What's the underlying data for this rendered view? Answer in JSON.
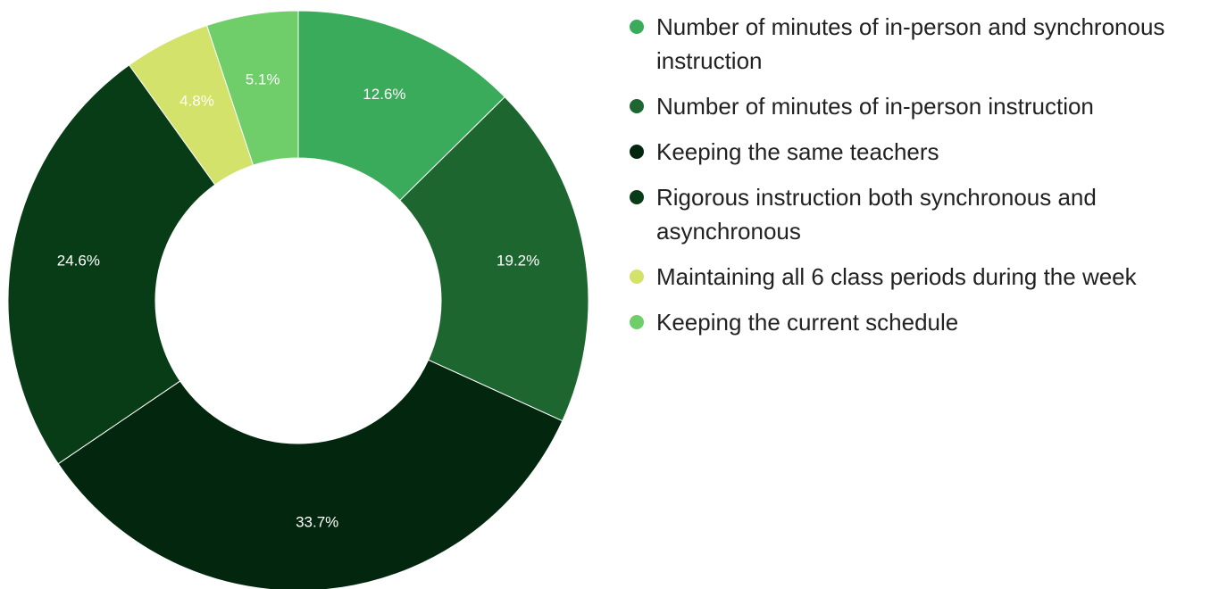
{
  "chart_data": {
    "type": "donut",
    "categories": [
      "Number of minutes of in-person and synchronous instruction",
      "Number of minutes of in-person instruction",
      "Keeping the same teachers",
      "Rigorous instruction both synchronous and asynchronous",
      "Maintaining all 6 class periods during the week",
      "Keeping the current schedule"
    ],
    "values": [
      12.6,
      19.2,
      33.7,
      24.6,
      4.8,
      5.1
    ],
    "value_labels": [
      "12.6%",
      "19.2%",
      "33.7%",
      "24.6%",
      "4.8%",
      "5.1%"
    ],
    "colors": [
      "#3aab5b",
      "#1d6630",
      "#03270e",
      "#083c16",
      "#d3e26b",
      "#6fcd6a"
    ],
    "legend": "right"
  }
}
